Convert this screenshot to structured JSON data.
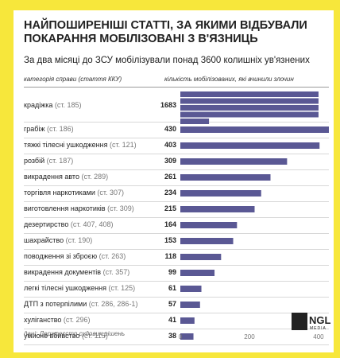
{
  "chart_data": {
    "type": "bar",
    "orientation": "horizontal",
    "title": "НАЙПОШИРЕНІШІ СТАТТІ, ЗА ЯКИМИ ВІДБУВАЛИ ПОКАРАННЯ МОБІЛІЗОВАНІ З В'ЯЗНИЦЬ",
    "subtitle": "За два місяці до ЗСУ мобілізували понад 3600 колишніх ув'язнених",
    "category_header": "категорія справи",
    "category_header_note": "(стаття ККУ)",
    "value_header": "кількість мобілізованих, які вчинили злочин",
    "categories": [
      "крадіжка",
      "грабіж",
      "тяжкі тілесні ушкодження",
      "розбій",
      "викрадення авто",
      "торгівля наркотиками",
      "виготовлення наркотиків",
      "дезертирство",
      "шахрайство",
      "поводження зі зброєю",
      "викрадення документів",
      "легкі тілесні ушкодження",
      "ДТП з потерпілими",
      "хуліганство",
      "умисне вбивство"
    ],
    "articles": [
      "(ст. 185)",
      "(ст. 186)",
      "(ст. 121)",
      "(ст. 187)",
      "(ст. 289)",
      "(ст. 307)",
      "(ст. 309)",
      "(ст. 407, 408)",
      "(ст. 190)",
      "(ст. 263)",
      "(ст. 357)",
      "(ст. 125)",
      "(ст. 286, 286-1)",
      "(ст. 296)",
      "(ст. 115)"
    ],
    "values": [
      1683,
      430,
      403,
      309,
      261,
      234,
      215,
      164,
      153,
      118,
      99,
      61,
      57,
      41,
      38
    ],
    "value_labels": [
      "1683",
      "430",
      "403",
      "309",
      "261",
      "234",
      "215",
      "164",
      "153",
      "118",
      "99",
      "61",
      "57",
      "41",
      "38"
    ],
    "first_bar_wrap": 400,
    "xlim": [
      0,
      430
    ],
    "xticks": [
      "0",
      "200",
      "400"
    ],
    "bar_color": "#5a5894",
    "source": "дані: Держреєстр судових рішень",
    "logo": "NGL media"
  },
  "colors": {
    "background": "#f7e73b",
    "card": "#ffffff",
    "bar": "#5a5894"
  }
}
